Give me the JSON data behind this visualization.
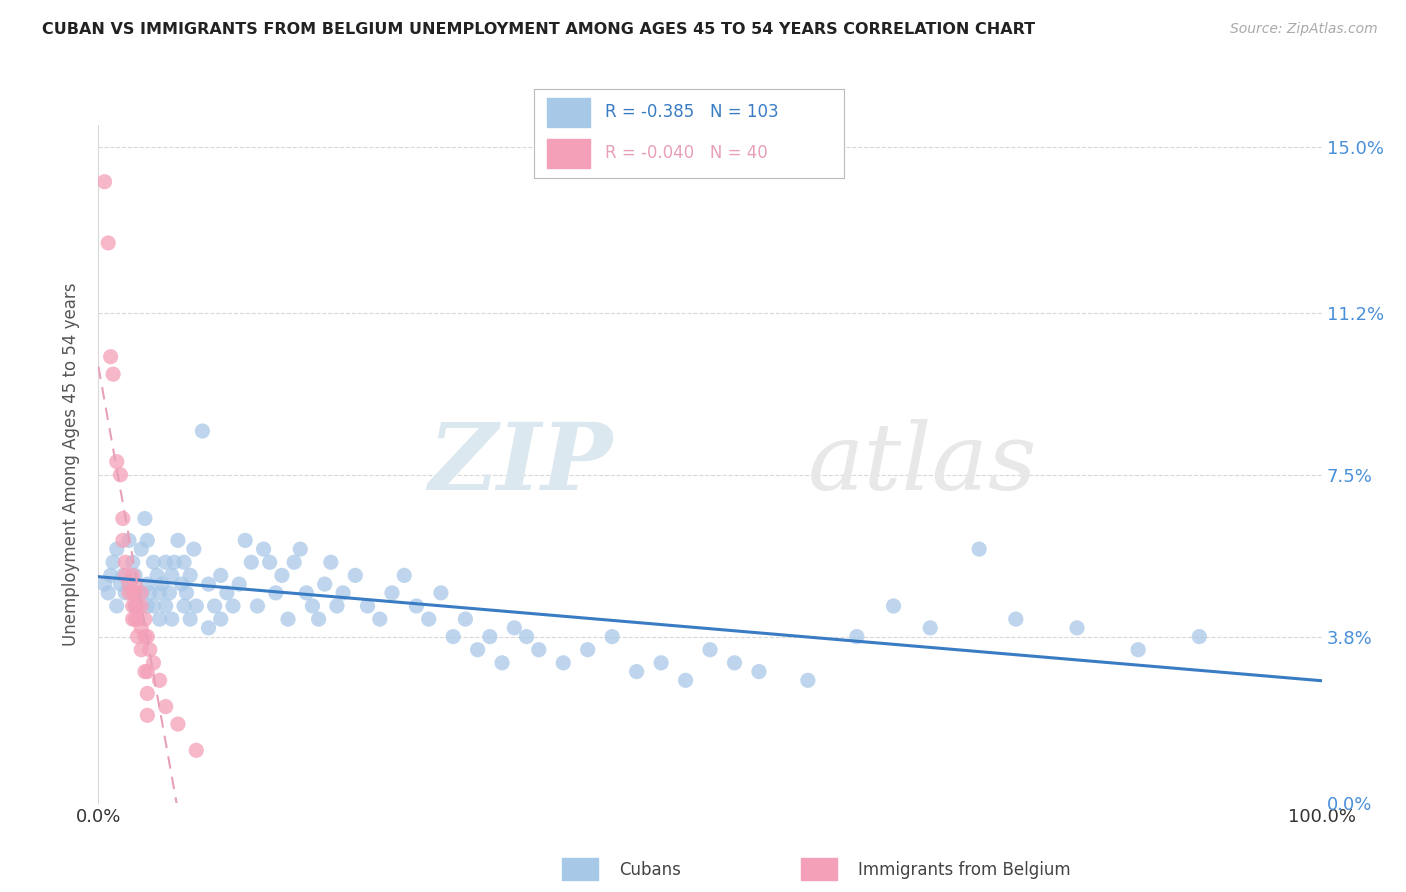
{
  "title": "CUBAN VS IMMIGRANTS FROM BELGIUM UNEMPLOYMENT AMONG AGES 45 TO 54 YEARS CORRELATION CHART",
  "source": "Source: ZipAtlas.com",
  "ylabel": "Unemployment Among Ages 45 to 54 years",
  "xlim": [
    0.0,
    1.0
  ],
  "ylim": [
    0.0,
    0.155
  ],
  "yticks": [
    0.0,
    0.038,
    0.075,
    0.112,
    0.15
  ],
  "ytick_labels": [
    "0.0%",
    "3.8%",
    "7.5%",
    "11.2%",
    "15.0%"
  ],
  "xticks": [
    0.0,
    1.0
  ],
  "xtick_labels": [
    "0.0%",
    "100.0%"
  ],
  "legend_labels": [
    "Cubans",
    "Immigrants from Belgium"
  ],
  "cuban_color": "#a8c8e8",
  "belgium_color": "#f4a0b8",
  "cuban_line_color": "#3a7cc4",
  "belgium_line_color": "#e8a0b8",
  "tick_color": "#4a90d9",
  "watermark_zip": "ZIP",
  "watermark_atlas": "atlas",
  "cuban_R": "-0.385",
  "cuban_N": "103",
  "belgium_R": "-0.040",
  "belgium_N": "40",
  "background_color": "#ffffff",
  "grid_color": "#d8d8d8",
  "cuban_scatter": [
    [
      0.005,
      0.05
    ],
    [
      0.008,
      0.048
    ],
    [
      0.01,
      0.052
    ],
    [
      0.012,
      0.055
    ],
    [
      0.015,
      0.058
    ],
    [
      0.015,
      0.045
    ],
    [
      0.018,
      0.05
    ],
    [
      0.02,
      0.052
    ],
    [
      0.022,
      0.048
    ],
    [
      0.025,
      0.06
    ],
    [
      0.025,
      0.05
    ],
    [
      0.028,
      0.055
    ],
    [
      0.03,
      0.048
    ],
    [
      0.03,
      0.052
    ],
    [
      0.03,
      0.045
    ],
    [
      0.035,
      0.058
    ],
    [
      0.035,
      0.048
    ],
    [
      0.038,
      0.065
    ],
    [
      0.04,
      0.06
    ],
    [
      0.04,
      0.045
    ],
    [
      0.04,
      0.05
    ],
    [
      0.042,
      0.048
    ],
    [
      0.045,
      0.055
    ],
    [
      0.045,
      0.045
    ],
    [
      0.048,
      0.052
    ],
    [
      0.05,
      0.048
    ],
    [
      0.05,
      0.042
    ],
    [
      0.052,
      0.05
    ],
    [
      0.055,
      0.055
    ],
    [
      0.055,
      0.045
    ],
    [
      0.058,
      0.048
    ],
    [
      0.06,
      0.052
    ],
    [
      0.06,
      0.042
    ],
    [
      0.062,
      0.055
    ],
    [
      0.065,
      0.06
    ],
    [
      0.068,
      0.05
    ],
    [
      0.07,
      0.045
    ],
    [
      0.07,
      0.055
    ],
    [
      0.072,
      0.048
    ],
    [
      0.075,
      0.052
    ],
    [
      0.075,
      0.042
    ],
    [
      0.078,
      0.058
    ],
    [
      0.08,
      0.045
    ],
    [
      0.085,
      0.085
    ],
    [
      0.09,
      0.05
    ],
    [
      0.09,
      0.04
    ],
    [
      0.095,
      0.045
    ],
    [
      0.1,
      0.052
    ],
    [
      0.1,
      0.042
    ],
    [
      0.105,
      0.048
    ],
    [
      0.11,
      0.045
    ],
    [
      0.115,
      0.05
    ],
    [
      0.12,
      0.06
    ],
    [
      0.125,
      0.055
    ],
    [
      0.13,
      0.045
    ],
    [
      0.135,
      0.058
    ],
    [
      0.14,
      0.055
    ],
    [
      0.145,
      0.048
    ],
    [
      0.15,
      0.052
    ],
    [
      0.155,
      0.042
    ],
    [
      0.16,
      0.055
    ],
    [
      0.165,
      0.058
    ],
    [
      0.17,
      0.048
    ],
    [
      0.175,
      0.045
    ],
    [
      0.18,
      0.042
    ],
    [
      0.185,
      0.05
    ],
    [
      0.19,
      0.055
    ],
    [
      0.195,
      0.045
    ],
    [
      0.2,
      0.048
    ],
    [
      0.21,
      0.052
    ],
    [
      0.22,
      0.045
    ],
    [
      0.23,
      0.042
    ],
    [
      0.24,
      0.048
    ],
    [
      0.25,
      0.052
    ],
    [
      0.26,
      0.045
    ],
    [
      0.27,
      0.042
    ],
    [
      0.28,
      0.048
    ],
    [
      0.29,
      0.038
    ],
    [
      0.3,
      0.042
    ],
    [
      0.31,
      0.035
    ],
    [
      0.32,
      0.038
    ],
    [
      0.33,
      0.032
    ],
    [
      0.34,
      0.04
    ],
    [
      0.35,
      0.038
    ],
    [
      0.36,
      0.035
    ],
    [
      0.38,
      0.032
    ],
    [
      0.4,
      0.035
    ],
    [
      0.42,
      0.038
    ],
    [
      0.44,
      0.03
    ],
    [
      0.46,
      0.032
    ],
    [
      0.48,
      0.028
    ],
    [
      0.5,
      0.035
    ],
    [
      0.52,
      0.032
    ],
    [
      0.54,
      0.03
    ],
    [
      0.58,
      0.028
    ],
    [
      0.62,
      0.038
    ],
    [
      0.65,
      0.045
    ],
    [
      0.68,
      0.04
    ],
    [
      0.72,
      0.058
    ],
    [
      0.75,
      0.042
    ],
    [
      0.8,
      0.04
    ],
    [
      0.85,
      0.035
    ],
    [
      0.9,
      0.038
    ]
  ],
  "belgium_scatter": [
    [
      0.005,
      0.142
    ],
    [
      0.008,
      0.128
    ],
    [
      0.01,
      0.102
    ],
    [
      0.012,
      0.098
    ],
    [
      0.015,
      0.078
    ],
    [
      0.018,
      0.075
    ],
    [
      0.02,
      0.065
    ],
    [
      0.02,
      0.06
    ],
    [
      0.022,
      0.055
    ],
    [
      0.022,
      0.052
    ],
    [
      0.025,
      0.05
    ],
    [
      0.025,
      0.048
    ],
    [
      0.028,
      0.052
    ],
    [
      0.028,
      0.048
    ],
    [
      0.028,
      0.045
    ],
    [
      0.028,
      0.042
    ],
    [
      0.03,
      0.05
    ],
    [
      0.03,
      0.045
    ],
    [
      0.03,
      0.042
    ],
    [
      0.03,
      0.048
    ],
    [
      0.032,
      0.045
    ],
    [
      0.032,
      0.042
    ],
    [
      0.032,
      0.038
    ],
    [
      0.035,
      0.048
    ],
    [
      0.035,
      0.045
    ],
    [
      0.035,
      0.04
    ],
    [
      0.035,
      0.035
    ],
    [
      0.038,
      0.042
    ],
    [
      0.038,
      0.038
    ],
    [
      0.038,
      0.03
    ],
    [
      0.04,
      0.038
    ],
    [
      0.04,
      0.03
    ],
    [
      0.04,
      0.025
    ],
    [
      0.04,
      0.02
    ],
    [
      0.042,
      0.035
    ],
    [
      0.045,
      0.032
    ],
    [
      0.05,
      0.028
    ],
    [
      0.055,
      0.022
    ],
    [
      0.065,
      0.018
    ],
    [
      0.08,
      0.012
    ]
  ]
}
